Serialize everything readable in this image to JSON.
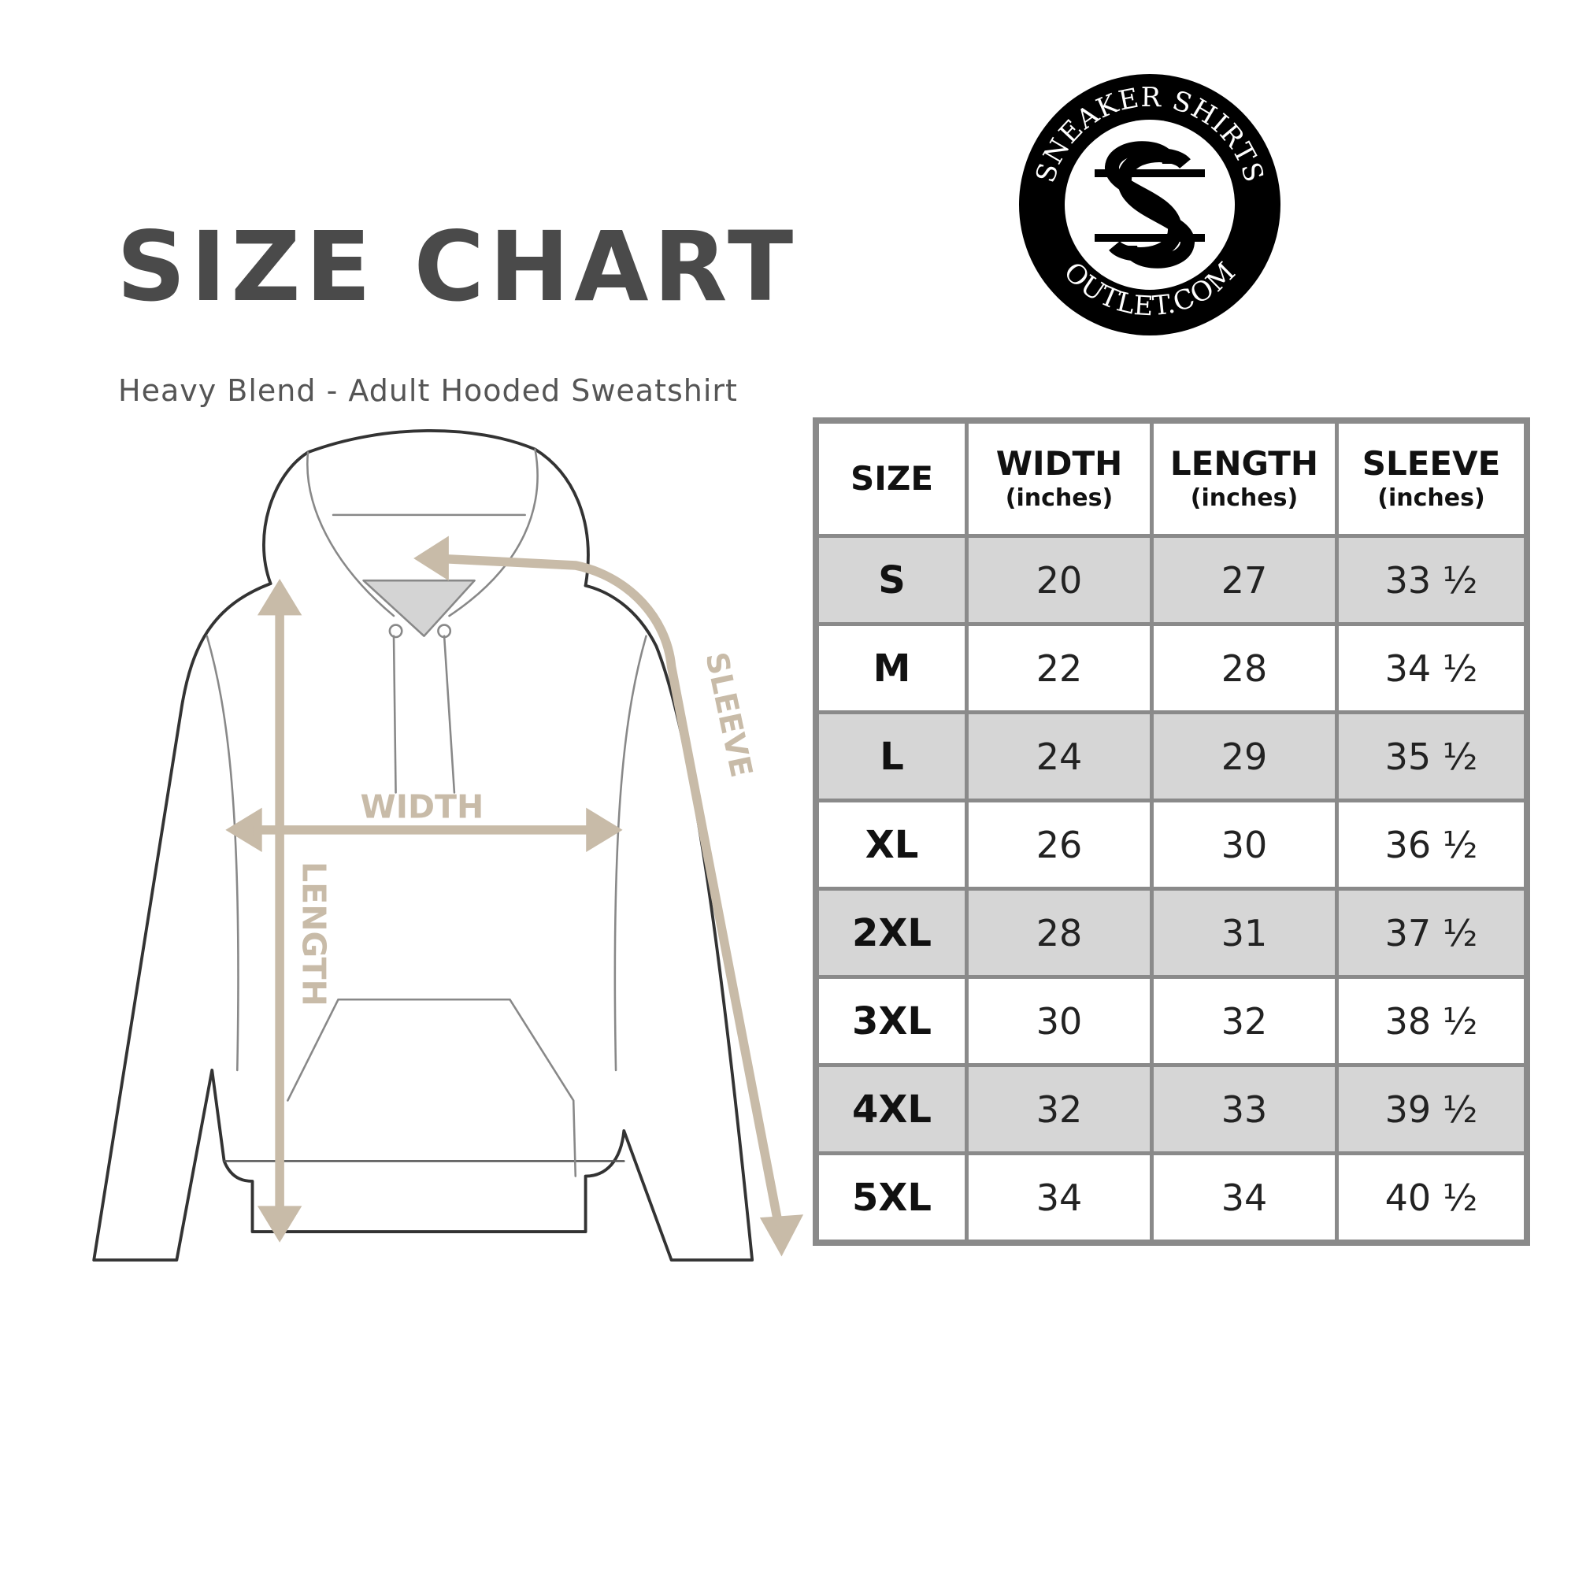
{
  "title": "SIZE CHART",
  "subtitle": "Heavy Blend - Adult Hooded Sweatshirt",
  "logo": {
    "text_top": "SNEAKER SHIRTS",
    "text_bottom": "OUTLET.COM",
    "monogram": "SS"
  },
  "diagram": {
    "labels": {
      "width": "WIDTH",
      "length": "LENGTH",
      "sleeve": "SLEEVE"
    },
    "arrow_color": "#c8bba8",
    "outline_color": "#333333"
  },
  "table": {
    "headers": [
      {
        "label": "SIZE",
        "unit": ""
      },
      {
        "label": "WIDTH",
        "unit": "(inches)"
      },
      {
        "label": "LENGTH",
        "unit": "(inches)"
      },
      {
        "label": "SLEEVE",
        "unit": "(inches)"
      }
    ],
    "rows": [
      [
        "S",
        "20",
        "27",
        "33 ½"
      ],
      [
        "M",
        "22",
        "28",
        "34 ½"
      ],
      [
        "L",
        "24",
        "29",
        "35 ½"
      ],
      [
        "XL",
        "26",
        "30",
        "36 ½"
      ],
      [
        "2XL",
        "28",
        "31",
        "37 ½"
      ],
      [
        "3XL",
        "30",
        "32",
        "38 ½"
      ],
      [
        "4XL",
        "32",
        "33",
        "39 ½"
      ],
      [
        "5XL",
        "34",
        "34",
        "40 ½"
      ]
    ],
    "stripe_color": "#d6d6d6",
    "border_color": "#8a8a8a"
  }
}
